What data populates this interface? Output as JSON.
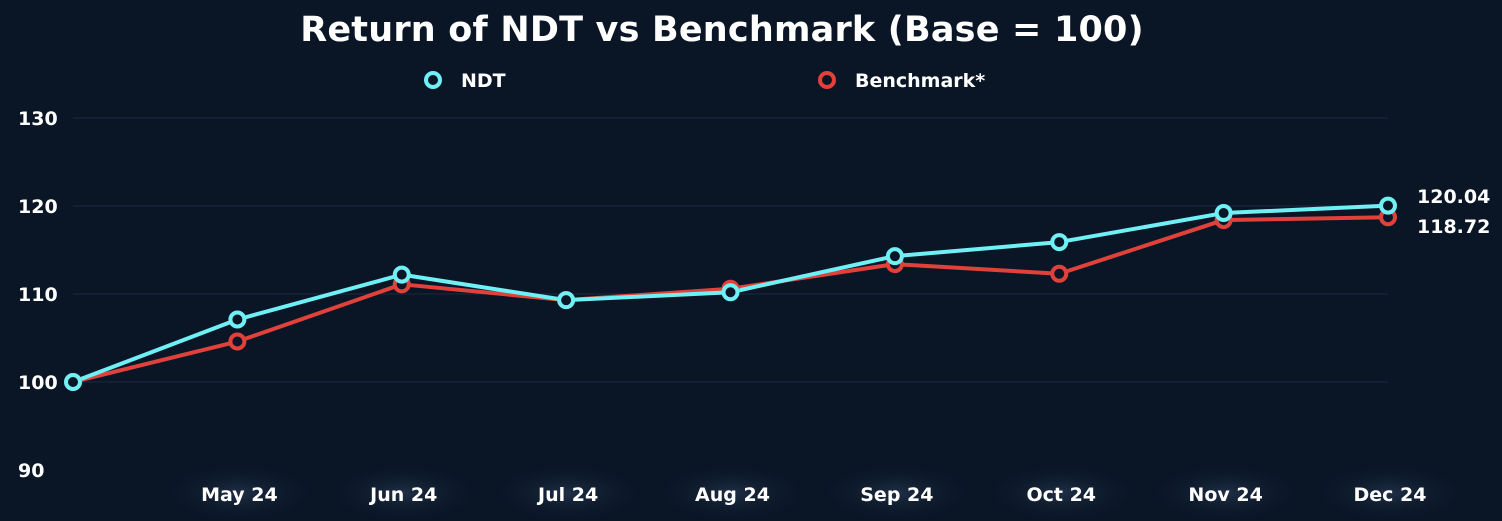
{
  "chart_data": {
    "type": "line",
    "title": "Return of NDT vs Benchmark (Base = 100)",
    "categories": [
      "",
      "May 24",
      "Jun 24",
      "Jul 24",
      "Aug 24",
      "Sep 24",
      "Oct 24",
      "Nov 24",
      "Dec 24"
    ],
    "series": [
      {
        "name": "NDT",
        "color": "#6ff0f5",
        "values": [
          100,
          107.1,
          112.2,
          109.3,
          110.2,
          114.3,
          115.9,
          119.2,
          120.04
        ],
        "end_label": "120.04"
      },
      {
        "name": "Benchmark*",
        "color": "#e0413a",
        "values": [
          100,
          104.6,
          111.1,
          109.3,
          110.6,
          113.4,
          112.3,
          118.4,
          118.72
        ],
        "end_label": "118.72"
      }
    ],
    "y_ticks": [
      "90",
      "100",
      "110",
      "120",
      "130"
    ],
    "ylim": [
      90,
      130
    ],
    "grid": true,
    "legend_position": "top-center"
  }
}
